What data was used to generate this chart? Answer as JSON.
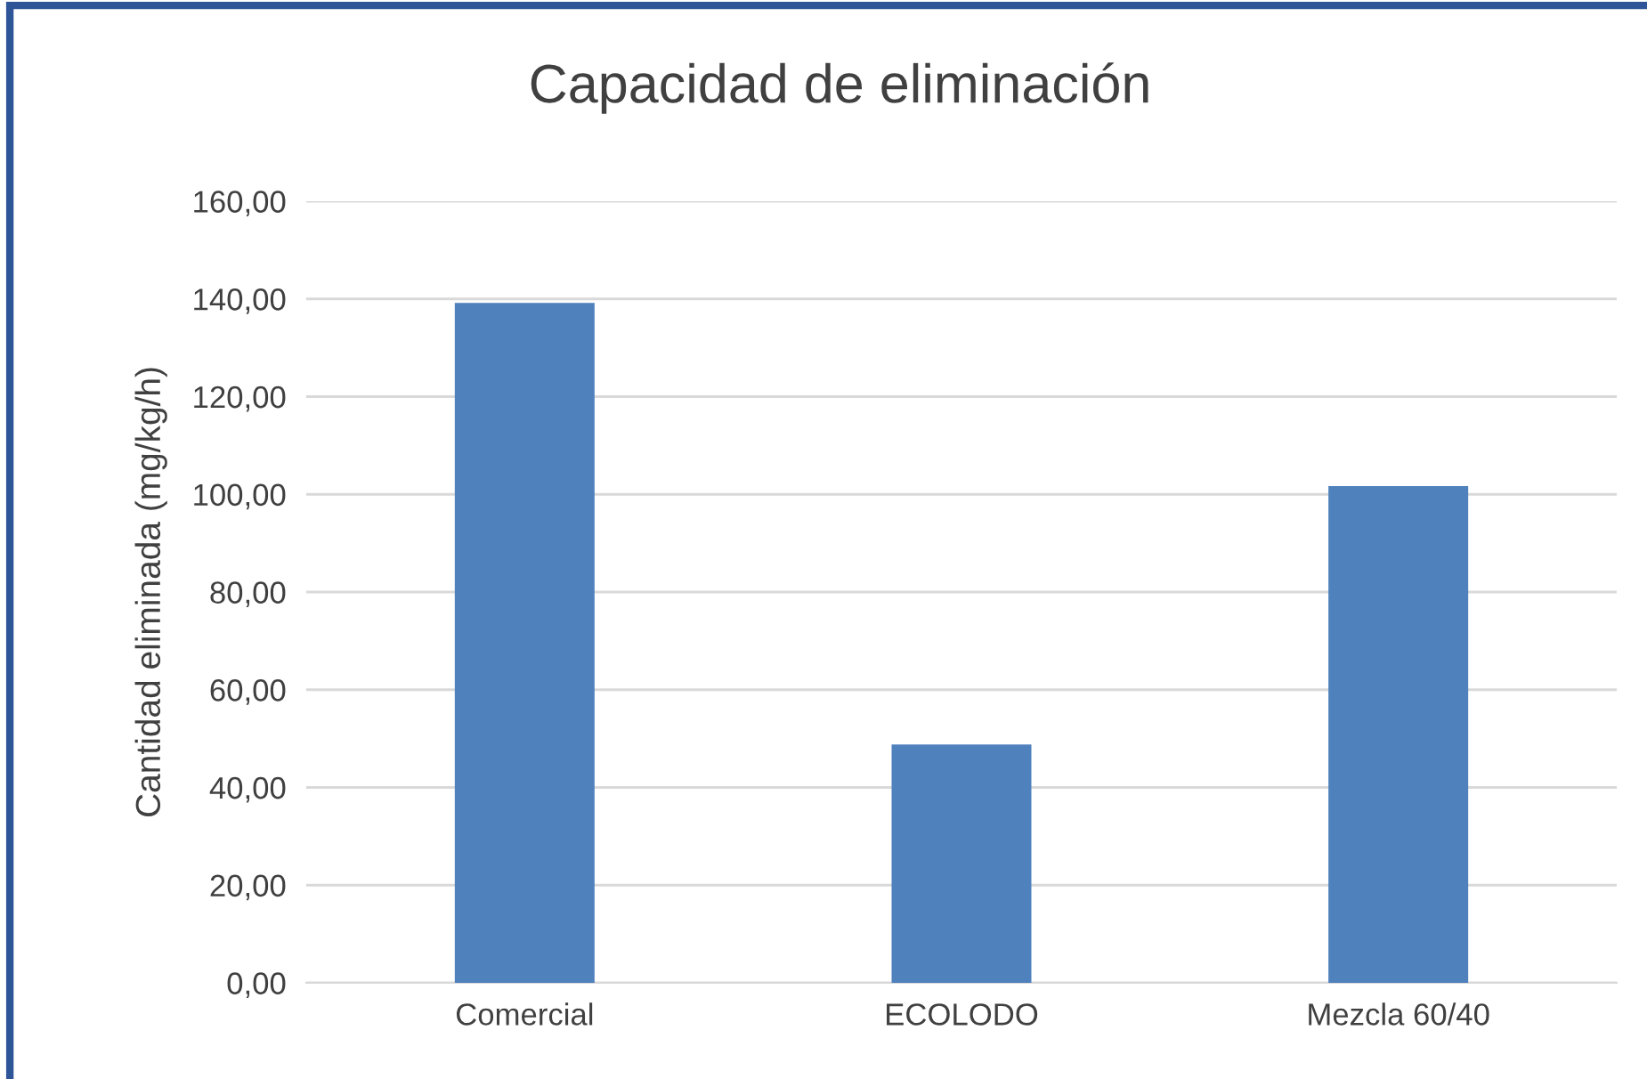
{
  "chart_data": {
    "type": "bar",
    "title": "Capacidad de eliminación",
    "ylabel": "Cantidad eliminada (mg/kg/h)",
    "categories": [
      "Comercial",
      "ECOLODO",
      "Mezcla 60/40"
    ],
    "values": [
      139.2,
      48.8,
      101.7
    ],
    "color": "#4f81bd",
    "ylim": [
      0,
      160
    ],
    "yticks": [
      {
        "value": 0,
        "label": "0,00"
      },
      {
        "value": 20,
        "label": "20,00"
      },
      {
        "value": 40,
        "label": "40,00"
      },
      {
        "value": 60,
        "label": "60,00"
      },
      {
        "value": 80,
        "label": "80,00"
      },
      {
        "value": 100,
        "label": "100,00"
      },
      {
        "value": 120,
        "label": "120,00"
      },
      {
        "value": 140,
        "label": "140,00"
      },
      {
        "value": 160,
        "label": "160,00"
      }
    ],
    "grid": "y"
  }
}
